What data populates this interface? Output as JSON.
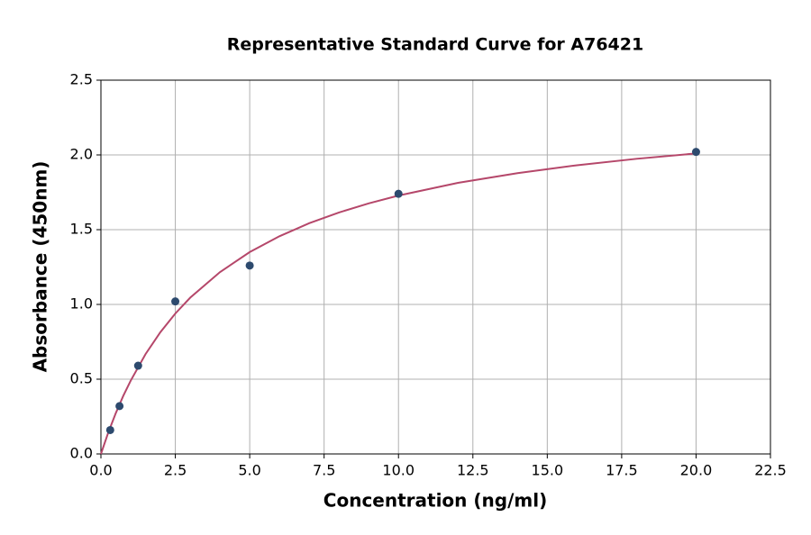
{
  "chart_data": {
    "type": "scatter",
    "title": "Representative Standard Curve for A76421",
    "x_label": "Concentration (ng/ml)",
    "y_label": "Absorbance (450nm)",
    "xlim": [
      0,
      22.5
    ],
    "ylim": [
      0,
      2.5
    ],
    "xticks": [
      {
        "value": 0,
        "label": "0.0"
      },
      {
        "value": 2.5,
        "label": "2.5"
      },
      {
        "value": 5,
        "label": "5.0"
      },
      {
        "value": 7.5,
        "label": "7.5"
      },
      {
        "value": 10,
        "label": "10.0"
      },
      {
        "value": 12.5,
        "label": "12.5"
      },
      {
        "value": 15,
        "label": "15.0"
      },
      {
        "value": 17.5,
        "label": "17.5"
      },
      {
        "value": 20,
        "label": "20.0"
      },
      {
        "value": 22.5,
        "label": "22.5"
      }
    ],
    "yticks": [
      {
        "value": 0,
        "label": "0.0"
      },
      {
        "value": 0.5,
        "label": "0.5"
      },
      {
        "value": 1,
        "label": "1.0"
      },
      {
        "value": 1.5,
        "label": "1.5"
      },
      {
        "value": 2,
        "label": "2.0"
      },
      {
        "value": 2.5,
        "label": "2.5"
      }
    ],
    "grid": true,
    "series": [
      {
        "style": "line",
        "color": "#b5476a",
        "x": [
          0,
          0.25,
          0.5,
          0.75,
          1,
          1.5,
          2,
          2.5,
          3,
          4,
          5,
          6,
          7,
          8,
          9,
          10,
          12,
          14,
          16,
          18,
          20
        ],
        "values": [
          0,
          0.145,
          0.273,
          0.388,
          0.49,
          0.668,
          0.815,
          0.939,
          1.045,
          1.216,
          1.35,
          1.456,
          1.543,
          1.615,
          1.676,
          1.728,
          1.813,
          1.878,
          1.931,
          1.974,
          2.01
        ]
      },
      {
        "style": "markers",
        "color": "#2d4a6e",
        "x": [
          0.3125,
          0.625,
          1.25,
          2.5,
          5,
          10,
          20
        ],
        "values": [
          0.16,
          0.32,
          0.59,
          1.02,
          1.26,
          1.74,
          2.02
        ]
      }
    ]
  }
}
